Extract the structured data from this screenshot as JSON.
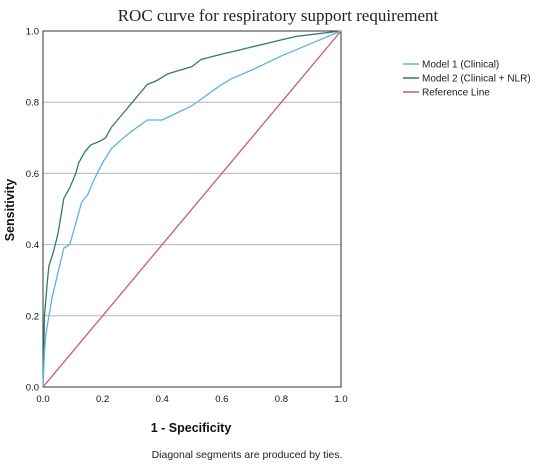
{
  "chart_data": {
    "type": "line",
    "title": "ROC curve for respiratory support requirement",
    "xlabel": "1 - Specificity",
    "ylabel": "Sensitivity",
    "xlim": [
      0,
      1
    ],
    "ylim": [
      0,
      1
    ],
    "x_ticks": [
      "0.0",
      "0.2",
      "0.4",
      "0.6",
      "0.8",
      "1.0"
    ],
    "y_ticks": [
      "0.0",
      "0.2",
      "0.4",
      "0.6",
      "0.8",
      "1.0"
    ],
    "grid": "horizontal",
    "legend_position": "right",
    "footnote": "Diagonal segments are produced by ties.",
    "series": [
      {
        "name": "Model 1 (Clinical)",
        "color": "#5ab4e0",
        "points": [
          [
            0,
            0
          ],
          [
            0.005,
            0.1
          ],
          [
            0.01,
            0.15
          ],
          [
            0.02,
            0.2
          ],
          [
            0.03,
            0.25
          ],
          [
            0.05,
            0.32
          ],
          [
            0.07,
            0.39
          ],
          [
            0.09,
            0.4
          ],
          [
            0.11,
            0.46
          ],
          [
            0.13,
            0.52
          ],
          [
            0.15,
            0.54
          ],
          [
            0.17,
            0.58
          ],
          [
            0.2,
            0.63
          ],
          [
            0.23,
            0.67
          ],
          [
            0.27,
            0.7
          ],
          [
            0.3,
            0.72
          ],
          [
            0.35,
            0.75
          ],
          [
            0.4,
            0.75
          ],
          [
            0.45,
            0.77
          ],
          [
            0.5,
            0.79
          ],
          [
            0.55,
            0.82
          ],
          [
            0.6,
            0.85
          ],
          [
            0.63,
            0.865
          ],
          [
            0.7,
            0.89
          ],
          [
            0.8,
            0.93
          ],
          [
            0.9,
            0.965
          ],
          [
            1.0,
            1.0
          ]
        ]
      },
      {
        "name": "Model 2 (Clinical + NLR)",
        "color": "#2e7d6b",
        "points": [
          [
            0,
            0
          ],
          [
            0.005,
            0.2
          ],
          [
            0.01,
            0.25
          ],
          [
            0.015,
            0.3
          ],
          [
            0.02,
            0.34
          ],
          [
            0.035,
            0.38
          ],
          [
            0.05,
            0.43
          ],
          [
            0.06,
            0.48
          ],
          [
            0.07,
            0.53
          ],
          [
            0.09,
            0.56
          ],
          [
            0.11,
            0.6
          ],
          [
            0.12,
            0.63
          ],
          [
            0.14,
            0.66
          ],
          [
            0.16,
            0.68
          ],
          [
            0.19,
            0.69
          ],
          [
            0.21,
            0.7
          ],
          [
            0.23,
            0.73
          ],
          [
            0.25,
            0.75
          ],
          [
            0.27,
            0.77
          ],
          [
            0.3,
            0.8
          ],
          [
            0.32,
            0.82
          ],
          [
            0.35,
            0.85
          ],
          [
            0.38,
            0.86
          ],
          [
            0.4,
            0.87
          ],
          [
            0.42,
            0.88
          ],
          [
            0.46,
            0.89
          ],
          [
            0.5,
            0.9
          ],
          [
            0.53,
            0.92
          ],
          [
            0.6,
            0.935
          ],
          [
            0.65,
            0.945
          ],
          [
            0.7,
            0.955
          ],
          [
            0.75,
            0.965
          ],
          [
            0.8,
            0.975
          ],
          [
            0.85,
            0.985
          ],
          [
            0.9,
            0.99
          ],
          [
            0.95,
            0.995
          ],
          [
            1.0,
            1.0
          ]
        ]
      },
      {
        "name": "Reference Line",
        "color": "#c85a72",
        "points": [
          [
            0,
            0
          ],
          [
            1,
            1
          ]
        ]
      }
    ]
  }
}
